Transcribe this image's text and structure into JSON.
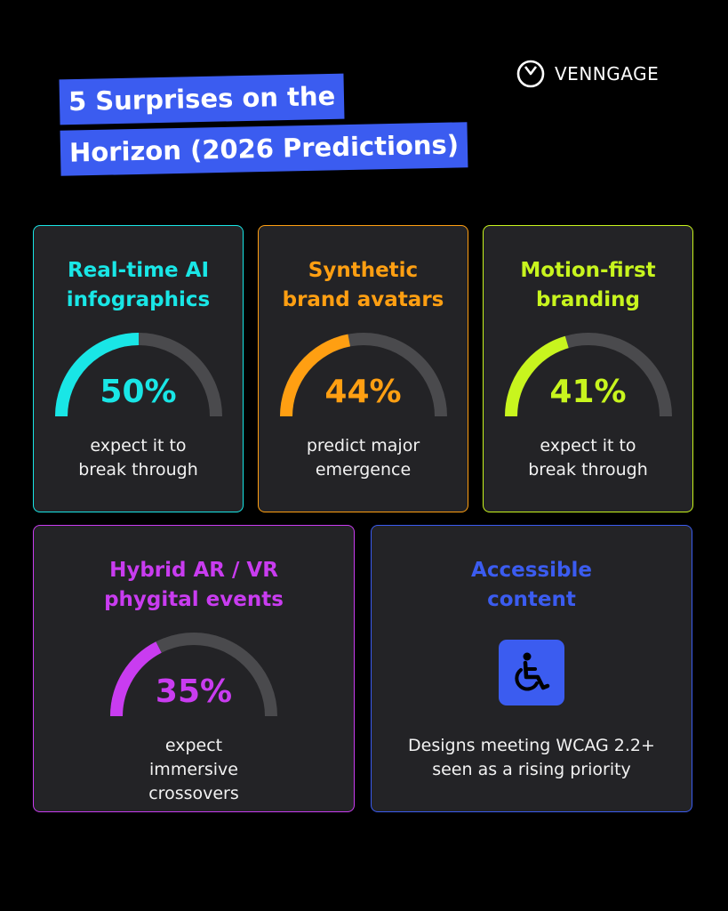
{
  "brand": {
    "name": "VENNGAGE",
    "icon": "venngage-clock-logo-icon"
  },
  "title": {
    "line1": "5 Surprises on the",
    "line2": "Horizon (2026 Predictions)"
  },
  "colors": {
    "background": "#000000",
    "card_bg": "#232326",
    "track": "#4a4a4d",
    "title_bg": "#3b5cf0",
    "cyan": "#19e6e6",
    "orange": "#ff9f12",
    "lime": "#c8f51e",
    "magenta": "#c93cf0",
    "blue": "#3b5cf0"
  },
  "cards": [
    {
      "title": "Real-time AI infographics",
      "percent": 50,
      "value_label": "50%",
      "caption": "expect it to break through",
      "color": "#19e6e6"
    },
    {
      "title": "Synthetic brand avatars",
      "percent": 44,
      "value_label": "44%",
      "caption": "predict major emergence",
      "color": "#ff9f12"
    },
    {
      "title": "Motion-first branding",
      "percent": 41,
      "value_label": "41%",
      "caption": "expect it to break through",
      "color": "#c8f51e"
    },
    {
      "title": "Hybrid AR / VR phygital events",
      "percent": 35,
      "value_label": "35%",
      "caption": "expect immersive crossovers",
      "color": "#c93cf0"
    },
    {
      "title": "Accessible content",
      "icon": "wheelchair-accessibility-icon",
      "caption": "Designs meeting WCAG 2.2+ seen as a rising priority",
      "color": "#3b5cf0"
    }
  ]
}
